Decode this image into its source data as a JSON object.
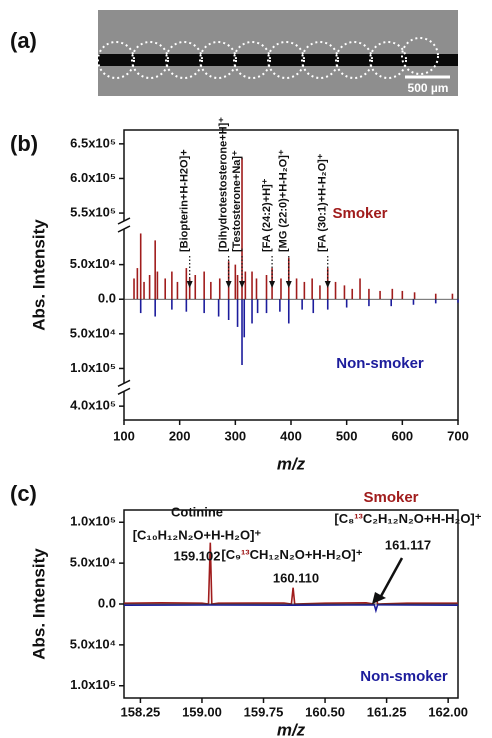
{
  "panel_a": {
    "label": "(a)",
    "scale_bar": "500 µm"
  },
  "chart_data": [
    {
      "type": "stick",
      "panel_label": "(b)",
      "xlabel": "m/z",
      "ylabel": "Abs. Intensity",
      "xlim": [
        100,
        700
      ],
      "xticks": [
        100,
        200,
        300,
        400,
        500,
        600,
        700
      ],
      "ylim": [
        -420000,
        670000
      ],
      "y_breaks": [
        [
          -380000,
          -120000
        ],
        [
          100000,
          540000
        ]
      ],
      "yticks": [
        {
          "value": 650000,
          "label": "6.5x10⁵"
        },
        {
          "value": 600000,
          "label": "6.0x10⁵"
        },
        {
          "value": 550000,
          "label": "5.5x10⁵"
        },
        {
          "value": 50000,
          "label": "5.0x10⁴"
        },
        {
          "value": 0,
          "label": "0.0"
        },
        {
          "value": -50000,
          "label": "5.0x10⁴"
        },
        {
          "value": -100000,
          "label": "1.0x10⁵"
        },
        {
          "value": -400000,
          "label": "4.0x10⁵"
        }
      ],
      "series": [
        {
          "name": "Smoker",
          "color": "#a01c1c",
          "x": [
            118,
            124,
            130,
            136,
            146,
            156,
            160,
            174,
            186,
            196,
            212,
            218,
            228,
            244,
            256,
            272,
            288,
            300,
            304,
            312,
            318,
            330,
            338,
            356,
            366,
            382,
            396,
            410,
            424,
            438,
            452,
            466,
            480,
            496,
            510,
            524,
            540,
            560,
            582,
            600,
            622,
            660,
            690
          ],
          "values": [
            30000,
            45000,
            95000,
            25000,
            35000,
            85000,
            40000,
            30000,
            40000,
            25000,
            45000,
            30000,
            35000,
            40000,
            25000,
            30000,
            55000,
            50000,
            35000,
            630000,
            40000,
            40000,
            30000,
            35000,
            45000,
            30000,
            60000,
            30000,
            25000,
            30000,
            20000,
            45000,
            25000,
            20000,
            15000,
            30000,
            15000,
            12000,
            15000,
            12000,
            10000,
            8000,
            8000
          ]
        },
        {
          "name": "Non-smoker",
          "color": "#1c1c9c",
          "x": [
            130,
            156,
            186,
            212,
            244,
            270,
            288,
            304,
            312,
            316,
            330,
            340,
            356,
            380,
            396,
            420,
            440,
            466,
            500,
            540,
            580,
            620,
            660,
            700
          ],
          "values": [
            -20000,
            -25000,
            -15000,
            -18000,
            -20000,
            -25000,
            -30000,
            -40000,
            -95000,
            -55000,
            -35000,
            -20000,
            -20000,
            -18000,
            -35000,
            -15000,
            -20000,
            -15000,
            -12000,
            -10000,
            -10000,
            -8000,
            -6000,
            -5000
          ]
        }
      ],
      "annotations": [
        {
          "text": "[Biopterin+H-H2O]+",
          "x": 218
        },
        {
          "text": "[Dihydrotestosterone+H]⁺",
          "x": 288
        },
        {
          "text": "[Testosterone+Na]⁺",
          "x": 312
        },
        {
          "text": "[FA (24:2)+H]⁺",
          "x": 366
        },
        {
          "text": "[MG (22:0)+H-H₂O]⁺",
          "x": 396
        },
        {
          "text": "[FA (30:1)+H-H₂O]⁺",
          "x": 466
        }
      ]
    },
    {
      "type": "line",
      "panel_label": "(c)",
      "xlabel": "m/z",
      "ylabel": "Abs. Intensity",
      "xlim": [
        158.05,
        162.12
      ],
      "xticks": [
        158.25,
        {
          "value": 159,
          "label": "159.00"
        },
        159.75,
        {
          "value": 160.5,
          "label": "160.50"
        },
        161.25,
        {
          "value": 162,
          "label": "162.00"
        }
      ],
      "ylim": [
        -115000,
        115000
      ],
      "yticks": [
        {
          "value": 100000,
          "label": "1.0x10⁵"
        },
        {
          "value": 50000,
          "label": "5.0x10⁴"
        },
        {
          "value": 0,
          "label": "0.0"
        },
        {
          "value": -50000,
          "label": "5.0x10⁴"
        },
        {
          "value": -100000,
          "label": "1.0x10⁵"
        }
      ],
      "series": [
        {
          "name": "Smoker",
          "color": "#a01c1c",
          "x": [
            158.05,
            158.5,
            159.0,
            159.08,
            159.102,
            159.12,
            159.2,
            160.0,
            160.09,
            160.11,
            160.13,
            160.5,
            161.0,
            161.09,
            161.117,
            161.14,
            161.5,
            162.12
          ],
          "values": [
            1000,
            1500,
            1000,
            0,
            75000,
            0,
            1000,
            1200,
            0,
            20000,
            0,
            1000,
            1500,
            0,
            13000,
            0,
            1000,
            1000
          ]
        },
        {
          "name": "Non-smoker",
          "color": "#1c1c9c",
          "x": [
            158.05,
            159.1,
            160.1,
            161.1,
            161.12,
            161.14,
            162.12
          ],
          "values": [
            -1500,
            -1200,
            -1500,
            -1000,
            -8000,
            -1000,
            -1500
          ]
        }
      ],
      "annotations": [
        {
          "lines": [
            "Cotinine",
            "[C₁₀H₁₂N₂O+H-H₂O]⁺",
            "159.102"
          ]
        },
        {
          "parts": [
            "[C₉",
            "¹³",
            "CH₁₂N₂O+H-H₂O]⁺"
          ],
          "mass": "160.110"
        },
        {
          "parts": [
            "[C₈",
            "¹³",
            "C₂H₁₂N₂O+H-H₂O]⁺"
          ],
          "mass": "161.117"
        }
      ]
    }
  ]
}
